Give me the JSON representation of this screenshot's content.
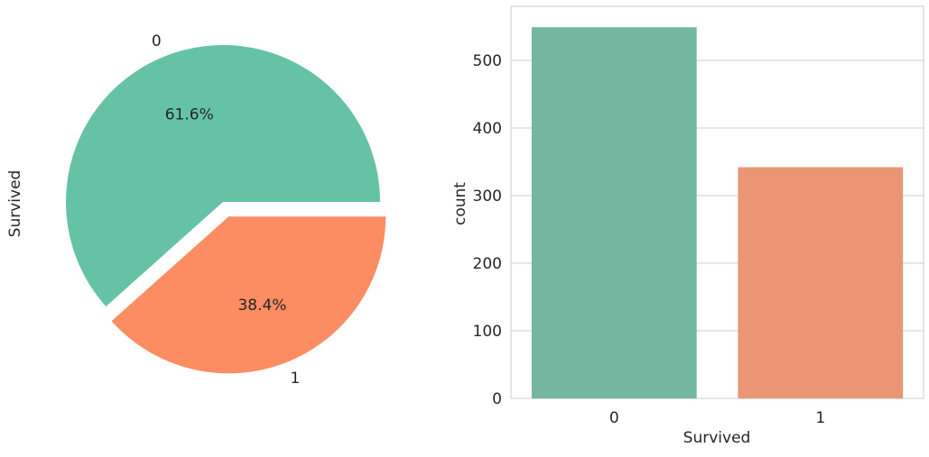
{
  "chart_data": [
    {
      "type": "pie",
      "ylabel": "Survived",
      "explode": "slice 1 offset from center",
      "slices": [
        {
          "label": "0",
          "value": 549,
          "pct_label": "61.6%",
          "color": "#66c2a5"
        },
        {
          "label": "1",
          "value": 342,
          "pct_label": "38.4%",
          "color": "#fc8d62"
        }
      ]
    },
    {
      "type": "bar",
      "categories": [
        "0",
        "1"
      ],
      "values": [
        549,
        342
      ],
      "colors": [
        "#74b6a0",
        "#ea9674"
      ],
      "xlabel": "Survived",
      "ylabel": "count",
      "ylim": [
        0,
        580
      ],
      "yticks": [
        0,
        100,
        200,
        300,
        400,
        500
      ],
      "grid": true
    }
  ]
}
